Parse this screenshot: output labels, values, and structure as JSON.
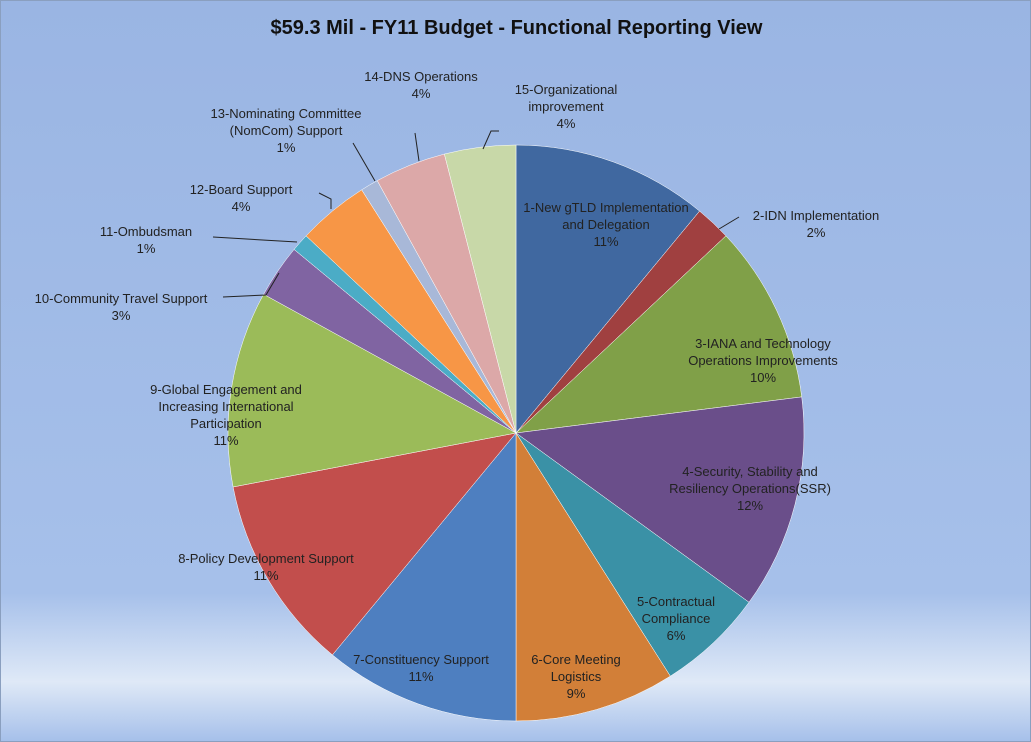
{
  "chart_data": {
    "type": "pie",
    "title": "$59.3 Mil - FY11 Budget - Functional Reporting View",
    "categories": [
      "1-New gTLD Implementation and Delegation",
      "2-IDN Implementation",
      "3-IANA and Technology Operations Improvements",
      "4-Security, Stability and Resiliency Operations(SSR)",
      "5-Contractual Compliance",
      "6-Core Meeting Logistics",
      "7-Constituency Support",
      "8-Policy Development Support",
      "9-Global Engagement and Increasing International Participation",
      "10-Community Travel Support",
      "11-Ombudsman",
      "12-Board Support",
      "13-Nominating Committee (NomCom) Support",
      "14-DNS Operations",
      "15-Organizational improvement"
    ],
    "values": [
      11,
      2,
      10,
      12,
      6,
      9,
      11,
      11,
      11,
      3,
      1,
      4,
      1,
      4,
      4
    ],
    "value_labels": [
      "11%",
      "2%",
      "10%",
      "12%",
      "6%",
      "9%",
      "11%",
      "11%",
      "11%",
      "3%",
      "1%",
      "4%",
      "1%",
      "4%",
      "4%"
    ],
    "colors": [
      "#4068a0",
      "#a04040",
      "#80a048",
      "#6a4e8a",
      "#3a91a6",
      "#d27f38",
      "#4e7fc0",
      "#c24e4c",
      "#9bbb59",
      "#8064a2",
      "#4bacc6",
      "#f79646",
      "#a8b8d8",
      "#dca8a8",
      "#c8d8a8"
    ]
  }
}
